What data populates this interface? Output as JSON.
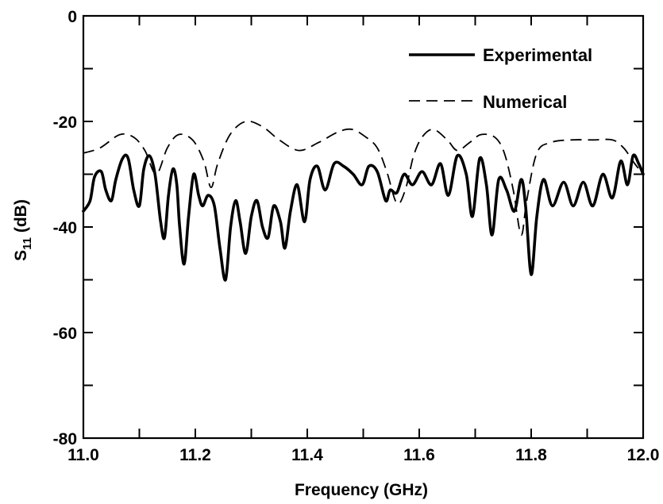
{
  "chart_data": {
    "type": "line",
    "title": "",
    "xlabel": "Frequency (GHz)",
    "ylabel_main": "S",
    "ylabel_sub": "11",
    "ylabel_unit": " (dB)",
    "xlim": [
      11.0,
      12.0
    ],
    "ylim": [
      -80,
      0
    ],
    "x_ticks": [
      "11.0",
      "11.2",
      "11.4",
      "11.6",
      "11.8",
      "12.0"
    ],
    "y_ticks": [
      "0",
      "-20",
      "-40",
      "-60",
      "-80"
    ],
    "grid": false,
    "legend_position": "top-right",
    "series": [
      {
        "name": "Experimental",
        "style": "solid",
        "points": [
          [
            11.0,
            -37
          ],
          [
            11.012,
            -35
          ],
          [
            11.02,
            -30.5
          ],
          [
            11.032,
            -29.5
          ],
          [
            11.04,
            -33
          ],
          [
            11.05,
            -35
          ],
          [
            11.058,
            -31
          ],
          [
            11.07,
            -27
          ],
          [
            11.08,
            -27
          ],
          [
            11.09,
            -33
          ],
          [
            11.1,
            -36
          ],
          [
            11.108,
            -29
          ],
          [
            11.118,
            -26.5
          ],
          [
            11.128,
            -30
          ],
          [
            11.138,
            -39
          ],
          [
            11.145,
            -42
          ],
          [
            11.152,
            -34
          ],
          [
            11.16,
            -29
          ],
          [
            11.167,
            -32
          ],
          [
            11.172,
            -40
          ],
          [
            11.18,
            -47
          ],
          [
            11.188,
            -38
          ],
          [
            11.197,
            -30
          ],
          [
            11.206,
            -34
          ],
          [
            11.213,
            -36
          ],
          [
            11.223,
            -34
          ],
          [
            11.234,
            -36
          ],
          [
            11.244,
            -44
          ],
          [
            11.254,
            -50
          ],
          [
            11.263,
            -40
          ],
          [
            11.272,
            -35
          ],
          [
            11.28,
            -39
          ],
          [
            11.29,
            -45
          ],
          [
            11.3,
            -38
          ],
          [
            11.31,
            -35
          ],
          [
            11.32,
            -40
          ],
          [
            11.33,
            -42
          ],
          [
            11.34,
            -36
          ],
          [
            11.352,
            -39
          ],
          [
            11.36,
            -44
          ],
          [
            11.37,
            -37
          ],
          [
            11.382,
            -32
          ],
          [
            11.395,
            -39
          ],
          [
            11.405,
            -31
          ],
          [
            11.418,
            -28.5
          ],
          [
            11.432,
            -33
          ],
          [
            11.448,
            -28
          ],
          [
            11.465,
            -28.5
          ],
          [
            11.482,
            -30
          ],
          [
            11.498,
            -32
          ],
          [
            11.51,
            -28.5
          ],
          [
            11.525,
            -29.5
          ],
          [
            11.54,
            -35
          ],
          [
            11.548,
            -33
          ],
          [
            11.56,
            -33.5
          ],
          [
            11.573,
            -30
          ],
          [
            11.588,
            -32
          ],
          [
            11.605,
            -29.5
          ],
          [
            11.622,
            -32
          ],
          [
            11.638,
            -28
          ],
          [
            11.652,
            -34
          ],
          [
            11.668,
            -26.5
          ],
          [
            11.684,
            -30
          ],
          [
            11.695,
            -38
          ],
          [
            11.708,
            -27
          ],
          [
            11.72,
            -32
          ],
          [
            11.73,
            -41.5
          ],
          [
            11.742,
            -31
          ],
          [
            11.756,
            -33
          ],
          [
            11.77,
            -37
          ],
          [
            11.782,
            -31
          ],
          [
            11.79,
            -36
          ],
          [
            11.8,
            -49
          ],
          [
            11.81,
            -38
          ],
          [
            11.822,
            -31
          ],
          [
            11.838,
            -36
          ],
          [
            11.858,
            -31.5
          ],
          [
            11.875,
            -36
          ],
          [
            11.893,
            -31.5
          ],
          [
            11.91,
            -36
          ],
          [
            11.928,
            -30
          ],
          [
            11.945,
            -34.5
          ],
          [
            11.96,
            -27.5
          ],
          [
            11.972,
            -32
          ],
          [
            11.982,
            -26.5
          ],
          [
            11.992,
            -28
          ],
          [
            12.0,
            -30
          ]
        ]
      },
      {
        "name": "Numerical",
        "style": "dashed",
        "points": [
          [
            11.0,
            -26
          ],
          [
            11.03,
            -25
          ],
          [
            11.065,
            -22.5
          ],
          [
            11.09,
            -23
          ],
          [
            11.11,
            -25.5
          ],
          [
            11.13,
            -30
          ],
          [
            11.15,
            -25
          ],
          [
            11.17,
            -22.5
          ],
          [
            11.195,
            -23.5
          ],
          [
            11.215,
            -27.5
          ],
          [
            11.228,
            -32.5
          ],
          [
            11.24,
            -28
          ],
          [
            11.262,
            -22.5
          ],
          [
            11.29,
            -20
          ],
          [
            11.32,
            -21
          ],
          [
            11.35,
            -23.5
          ],
          [
            11.385,
            -25.5
          ],
          [
            11.42,
            -24
          ],
          [
            11.455,
            -22
          ],
          [
            11.48,
            -21.5
          ],
          [
            11.505,
            -23
          ],
          [
            11.525,
            -25
          ],
          [
            11.542,
            -29.5
          ],
          [
            11.56,
            -35.5
          ],
          [
            11.575,
            -33
          ],
          [
            11.59,
            -26.5
          ],
          [
            11.605,
            -23
          ],
          [
            11.625,
            -21.5
          ],
          [
            11.65,
            -23.5
          ],
          [
            11.668,
            -25.5
          ],
          [
            11.69,
            -24
          ],
          [
            11.71,
            -22.5
          ],
          [
            11.735,
            -23
          ],
          [
            11.752,
            -26
          ],
          [
            11.768,
            -33
          ],
          [
            11.782,
            -41.5
          ],
          [
            11.792,
            -35
          ],
          [
            11.81,
            -26
          ],
          [
            11.835,
            -24
          ],
          [
            11.87,
            -23.5
          ],
          [
            11.91,
            -23.5
          ],
          [
            11.945,
            -23.5
          ],
          [
            11.965,
            -25
          ],
          [
            11.985,
            -28
          ],
          [
            12.0,
            -30
          ]
        ]
      }
    ]
  }
}
